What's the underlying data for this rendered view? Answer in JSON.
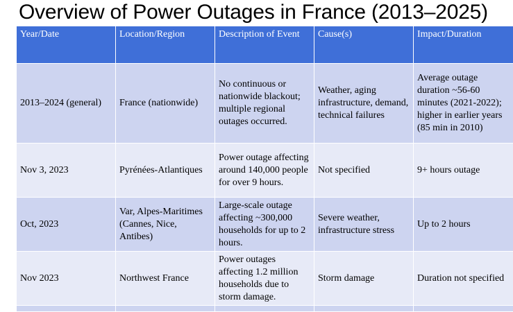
{
  "title": "Overview of Power Outages in France (2013–2025)",
  "table": {
    "headers": [
      "Year/Date",
      "Location/Region",
      "Description of Event",
      "Cause(s)",
      "Impact/Duration"
    ],
    "rows": [
      [
        "2013–2024 (general)",
        "France (nationwide)",
        "No continuous or nationwide blackout; multiple regional outages occurred.",
        "Weather, aging infrastructure, demand, technical failures",
        "Average outage duration ~56-60 minutes (2021-2022); higher in earlier years (85 min in 2010)"
      ],
      [
        "Nov 3, 2023",
        "Pyrénées-Atlantiques",
        "Power outage affecting around 140,000 people for over 9 hours.",
        "Not specified",
        "9+ hours outage"
      ],
      [
        "Oct, 2023",
        "Var, Alpes-Maritimes (Cannes, Nice, Antibes)",
        "Large-scale outage affecting ~300,000 households for up to 2 hours.",
        "Severe weather, infrastructure stress",
        "Up to 2 hours"
      ],
      [
        "Nov 2023",
        "Northwest France",
        "Power outages affecting 1.2 million households due to storm damage.",
        "Storm damage",
        "Duration not specified"
      ]
    ]
  },
  "colors": {
    "header_bg": "#3f6fd8",
    "row_dark": "#cdd4f0",
    "row_light": "#e7eaf7"
  }
}
